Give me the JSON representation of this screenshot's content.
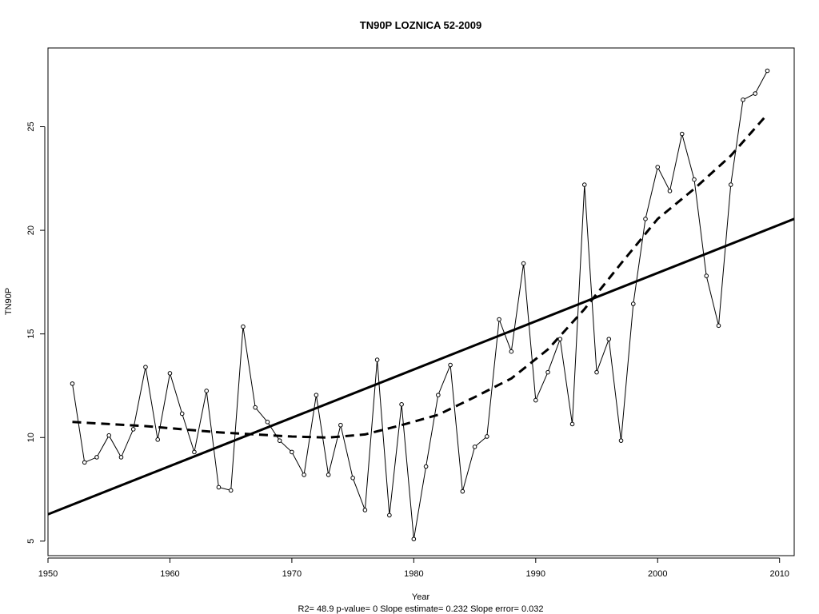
{
  "chart_data": {
    "type": "line",
    "title": "TN90P   LOZNICA 52-2009",
    "xlabel": "Year",
    "ylabel": "TN90P",
    "footer": "R2= 48.9  p-value= 0  Slope estimate= 0.232  Slope error= 0.032",
    "xlim": [
      1950,
      2011.2
    ],
    "ylim": [
      4.3,
      28.8
    ],
    "x_ticks": [
      "1950",
      "1960",
      "1970",
      "1980",
      "1990",
      "2000",
      "2010"
    ],
    "y_ticks": [
      "5",
      "10",
      "15",
      "20",
      "25"
    ],
    "grid": false,
    "legend": "none",
    "series": [
      {
        "style": "line-with-points",
        "x": [
          1952,
          1953,
          1954,
          1955,
          1956,
          1957,
          1958,
          1959,
          1960,
          1961,
          1962,
          1963,
          1964,
          1965,
          1966,
          1967,
          1968,
          1969,
          1970,
          1971,
          1972,
          1973,
          1974,
          1975,
          1976,
          1977,
          1978,
          1979,
          1980,
          1981,
          1982,
          1983,
          1984,
          1985,
          1986,
          1987,
          1988,
          1989,
          1990,
          1991,
          1992,
          1993,
          1994,
          1995,
          1996,
          1997,
          1998,
          1999,
          2000,
          2001,
          2002,
          2003,
          2004,
          2005,
          2006,
          2007,
          2008,
          2009
        ],
        "values": [
          12.6,
          8.8,
          9.05,
          10.1,
          9.05,
          10.4,
          13.4,
          9.9,
          13.1,
          11.15,
          9.3,
          12.25,
          7.6,
          7.45,
          15.35,
          11.45,
          10.75,
          9.85,
          9.3,
          8.2,
          12.05,
          8.2,
          10.6,
          8.05,
          6.5,
          13.75,
          6.25,
          11.6,
          5.1,
          8.6,
          12.05,
          13.5,
          7.4,
          9.55,
          10.05,
          15.7,
          14.15,
          18.4,
          11.8,
          13.15,
          14.75,
          10.65,
          22.2,
          13.15,
          14.75,
          9.85,
          16.45,
          20.55,
          23.05,
          21.9,
          24.65,
          22.45,
          17.8,
          15.4,
          22.2,
          26.3,
          26.6,
          27.7
        ]
      },
      {
        "style": "solid",
        "x": [
          1949.8,
          2011.2
        ],
        "values": [
          6.25,
          20.55
        ]
      },
      {
        "style": "dashed",
        "x": [
          1952,
          1955,
          1958,
          1961,
          1964,
          1967,
          1970,
          1973,
          1976,
          1979,
          1982,
          1985,
          1988,
          1991,
          1994,
          1997,
          2000,
          2003,
          2006,
          2009
        ],
        "values": [
          10.75,
          10.65,
          10.55,
          10.4,
          10.25,
          10.15,
          10.05,
          10.0,
          10.15,
          10.6,
          11.1,
          11.95,
          12.85,
          14.25,
          16.2,
          18.4,
          20.55,
          22.0,
          23.6,
          25.6
        ]
      }
    ]
  }
}
